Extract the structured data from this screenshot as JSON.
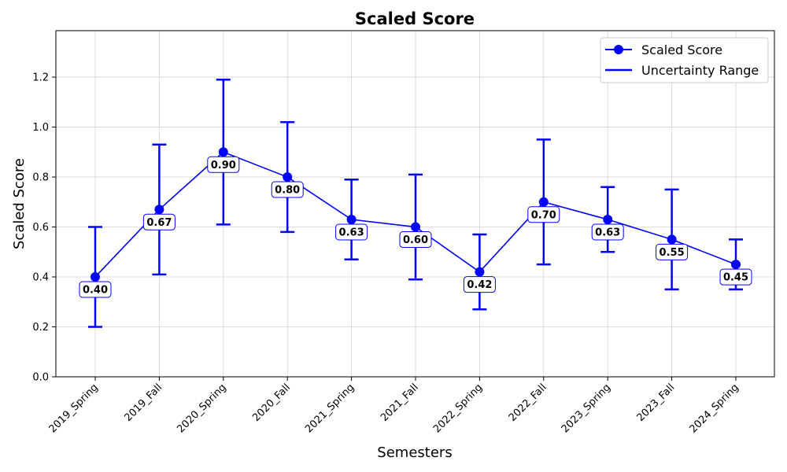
{
  "chart_data": {
    "type": "line",
    "title": "Scaled Score",
    "xlabel": "Semesters",
    "ylabel": "Scaled Score",
    "categories": [
      "2019_Spring",
      "2019_Fall",
      "2020_Spring",
      "2020_Fall",
      "2021_Spring",
      "2021_Fall",
      "2022_Spring",
      "2022_Fall",
      "2023_Spring",
      "2023_Fall",
      "2024_Spring"
    ],
    "series": [
      {
        "name": "Scaled Score",
        "values": [
          0.4,
          0.67,
          0.9,
          0.8,
          0.63,
          0.6,
          0.42,
          0.7,
          0.63,
          0.55,
          0.45
        ],
        "data_labels": [
          "0.40",
          "0.67",
          "0.90",
          "0.80",
          "0.63",
          "0.60",
          "0.42",
          "0.70",
          "0.63",
          "0.55",
          "0.45"
        ],
        "lower": [
          0.2,
          0.41,
          0.61,
          0.58,
          0.47,
          0.39,
          0.27,
          0.45,
          0.5,
          0.35,
          0.35
        ],
        "upper": [
          0.6,
          0.93,
          1.19,
          1.02,
          0.79,
          0.81,
          0.57,
          0.95,
          0.76,
          0.75,
          0.55
        ]
      }
    ],
    "legend": {
      "placement": "top-right",
      "entries": [
        "Scaled Score",
        "Uncertainty Range"
      ]
    },
    "yticks": [
      "0.0",
      "0.2",
      "0.4",
      "0.6",
      "0.8",
      "1.0",
      "1.2"
    ],
    "ylim": [
      0,
      1.386
    ],
    "grid": true,
    "colors": {
      "series": "#0000ff",
      "grid": "#d3d3d3",
      "axis": "#000000"
    }
  }
}
